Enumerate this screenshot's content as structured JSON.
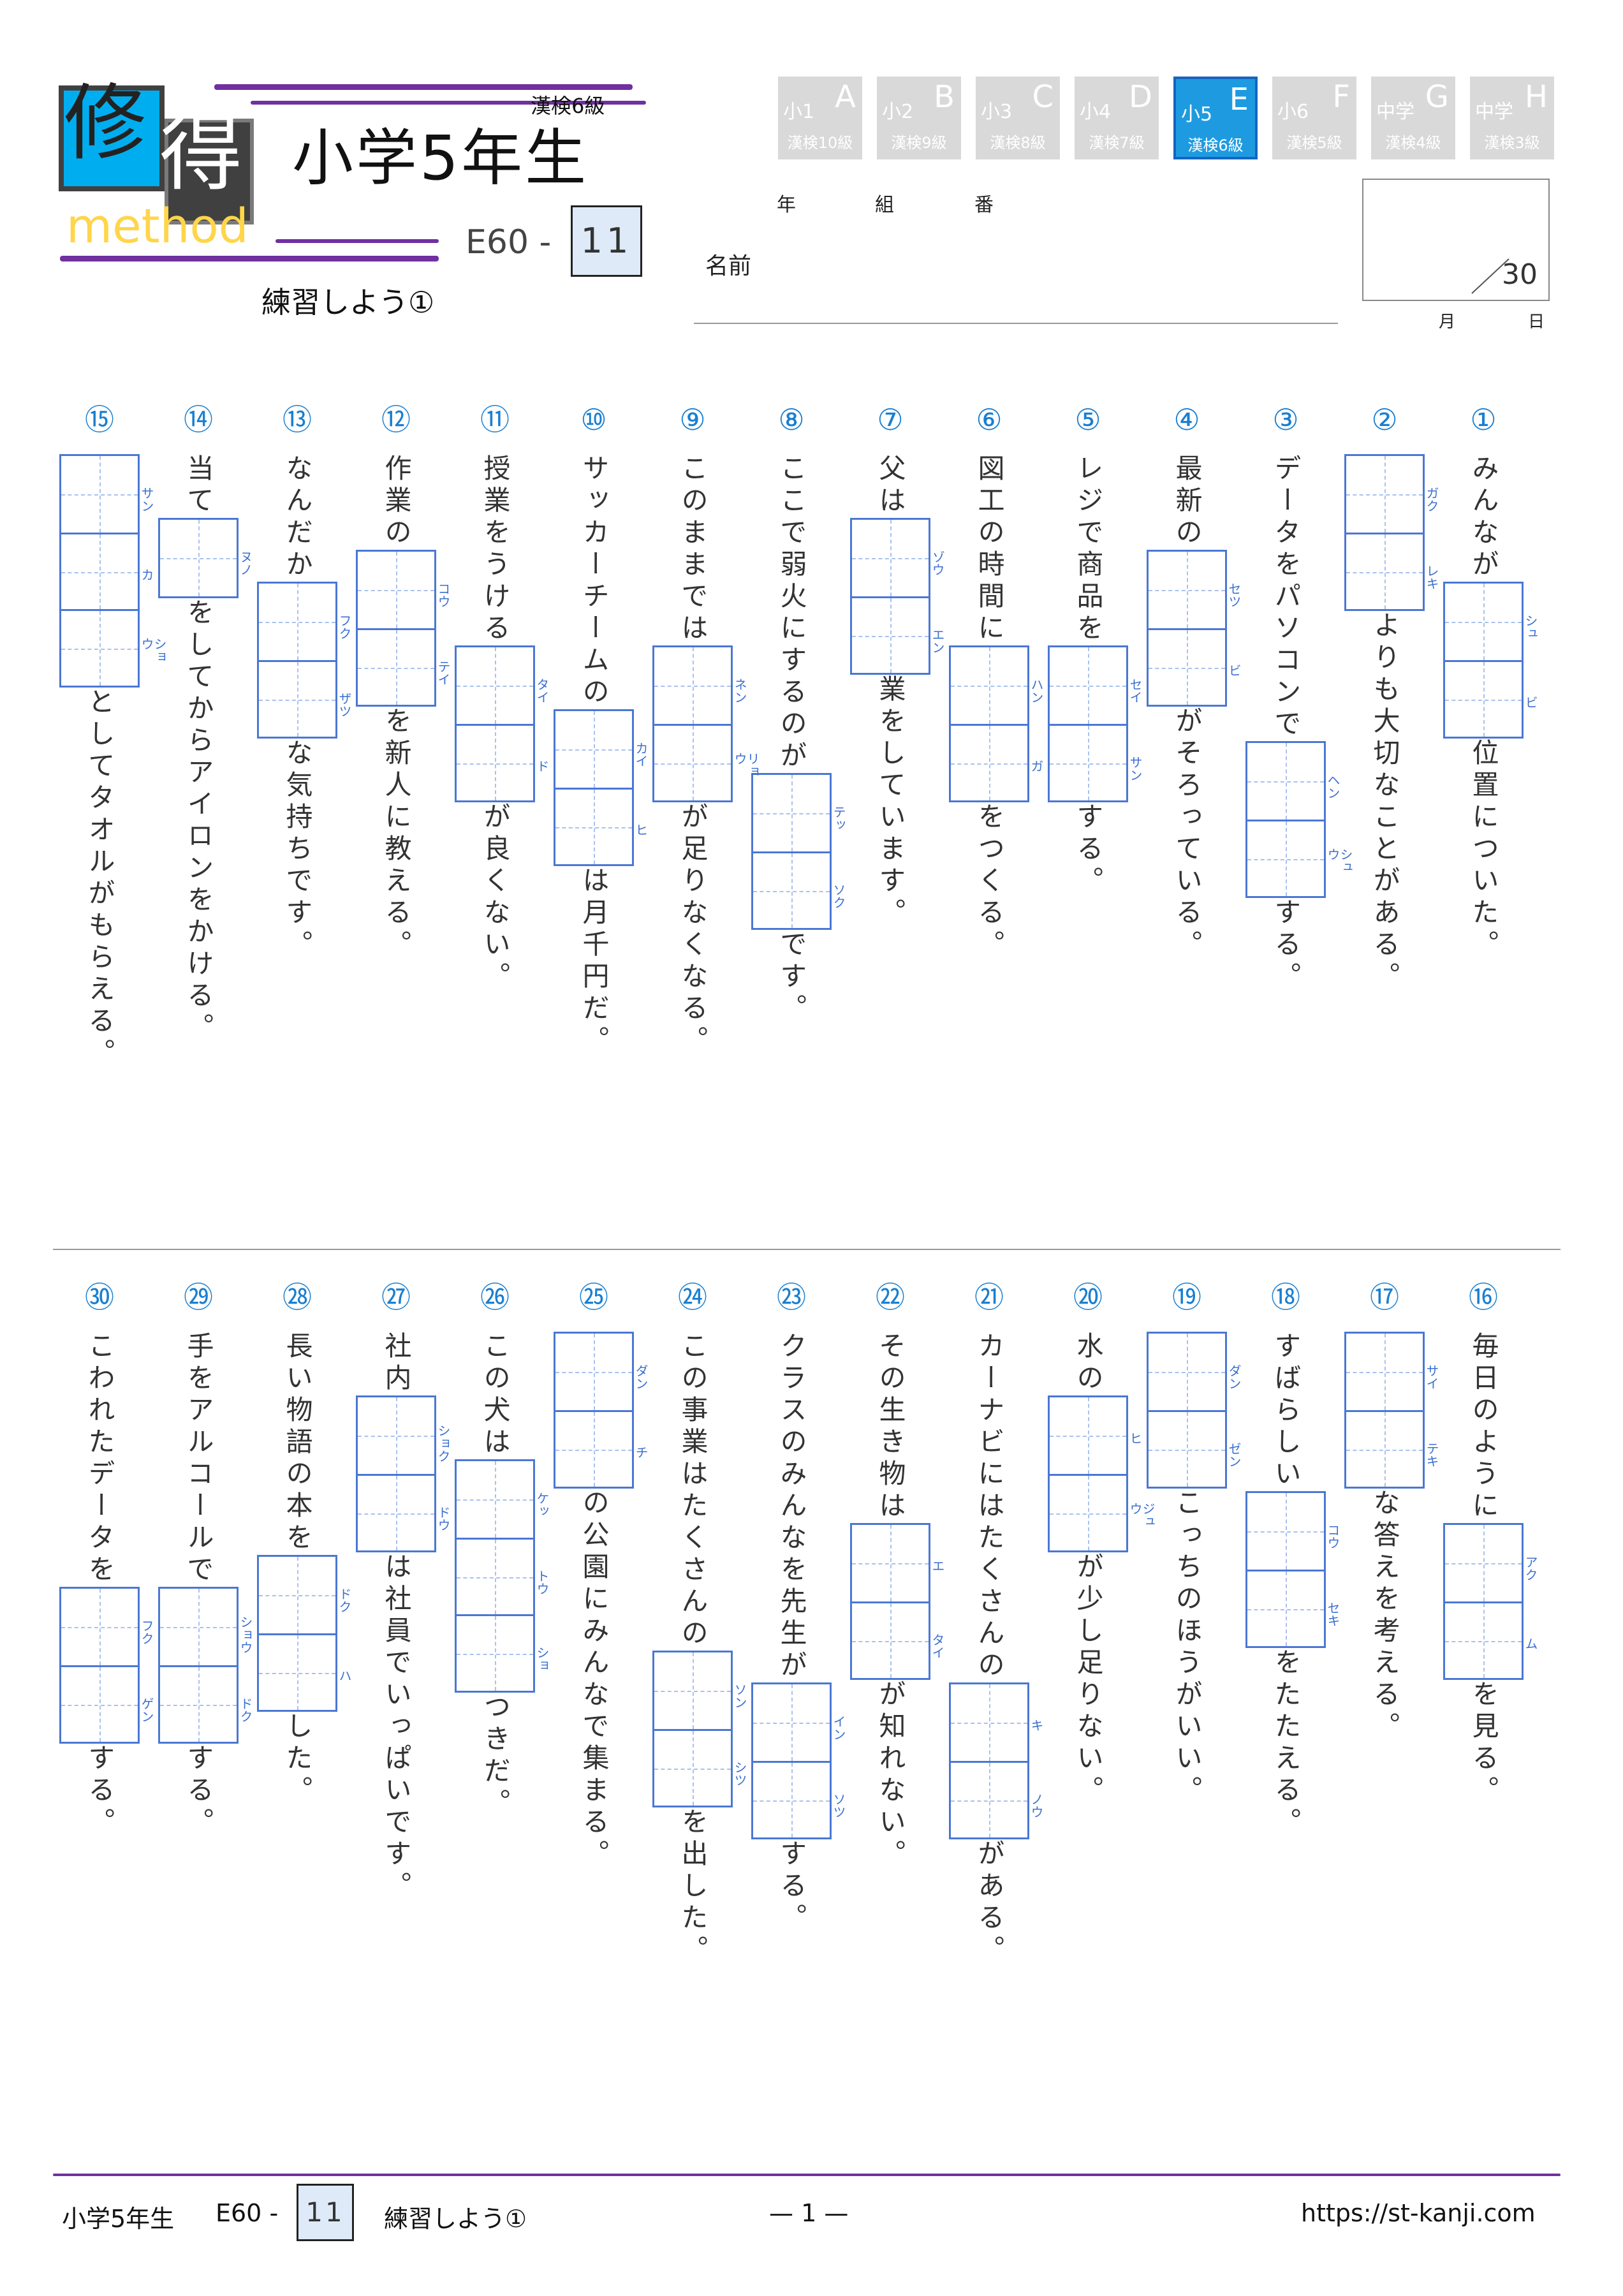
{
  "header": {
    "logo": {
      "kanji1": "修",
      "kanji2": "得",
      "word": "method"
    },
    "title": "小学5年生",
    "level": "漢検6級",
    "code": "E60 -",
    "code_number": "11",
    "subtitle": "練習しよう①",
    "tabs": [
      {
        "grade": "小1",
        "letter": "A",
        "level": "漢検10級",
        "active": false
      },
      {
        "grade": "小2",
        "letter": "B",
        "level": "漢検9級",
        "active": false
      },
      {
        "grade": "小3",
        "letter": "C",
        "level": "漢検8級",
        "active": false
      },
      {
        "grade": "小4",
        "letter": "D",
        "level": "漢検7級",
        "active": false
      },
      {
        "grade": "小5",
        "letter": "E",
        "level": "漢検6級",
        "active": true
      },
      {
        "grade": "小6",
        "letter": "F",
        "level": "漢検5級",
        "active": false
      },
      {
        "grade": "中学",
        "letter": "G",
        "level": "漢検4級",
        "active": false
      },
      {
        "grade": "中学",
        "letter": "H",
        "level": "漢検3級",
        "active": false
      }
    ],
    "fields": {
      "year": "年",
      "class": "組",
      "number": "番",
      "name": "名前",
      "month": "月",
      "day": "日"
    },
    "score_total": "30"
  },
  "colors": {
    "accent_purple": "#7030a0",
    "box_blue": "#4a77d4",
    "tab_active": "#1e9be0",
    "number_blue": "#1a7fd0"
  },
  "questions": [
    {
      "num": "①",
      "parts": [
        {
          "t": "みんなが"
        },
        {
          "box": [
            "シュ",
            "ビ"
          ]
        },
        {
          "t": "位置についた。"
        }
      ]
    },
    {
      "num": "②",
      "parts": [
        {
          "box": [
            "ガク",
            "レキ"
          ]
        },
        {
          "t": "よりも大切なことがある。"
        }
      ]
    },
    {
      "num": "③",
      "parts": [
        {
          "t": "データをパソコンで"
        },
        {
          "box": [
            "ヘン",
            "シュウ"
          ]
        },
        {
          "t": "する。"
        }
      ]
    },
    {
      "num": "④",
      "parts": [
        {
          "t": "最新の"
        },
        {
          "box": [
            "セツ",
            "ビ"
          ]
        },
        {
          "t": "がそろっている。"
        }
      ]
    },
    {
      "num": "⑤",
      "parts": [
        {
          "t": "レジで商品を"
        },
        {
          "box": [
            "セイ",
            "サン"
          ]
        },
        {
          "t": "する。"
        }
      ]
    },
    {
      "num": "⑥",
      "parts": [
        {
          "t": "図工の時間に"
        },
        {
          "box": [
            "ハン",
            "ガ"
          ]
        },
        {
          "t": "をつくる。"
        }
      ]
    },
    {
      "num": "⑦",
      "parts": [
        {
          "t": "父は"
        },
        {
          "box": [
            "ゾウ",
            "エン"
          ]
        },
        {
          "t": "業をしています。"
        }
      ]
    },
    {
      "num": "⑧",
      "parts": [
        {
          "t": "ここで弱火にするのが"
        },
        {
          "box": [
            "テッ",
            "ソク"
          ]
        },
        {
          "t": "です。"
        }
      ]
    },
    {
      "num": "⑨",
      "parts": [
        {
          "t": "このままでは"
        },
        {
          "box": [
            "ネン",
            "リョウ"
          ]
        },
        {
          "t": "が足りなくなる。"
        }
      ]
    },
    {
      "num": "⑩",
      "parts": [
        {
          "t": "サッカーチームの"
        },
        {
          "box": [
            "カイ",
            "ヒ"
          ]
        },
        {
          "t": "は月千円だ。"
        }
      ]
    },
    {
      "num": "⑪",
      "parts": [
        {
          "t": "授業をうける"
        },
        {
          "box": [
            "タイ",
            "ド"
          ]
        },
        {
          "t": "が良くない。"
        }
      ]
    },
    {
      "num": "⑫",
      "parts": [
        {
          "t": "作業の"
        },
        {
          "box": [
            "コウ",
            "テイ"
          ]
        },
        {
          "t": "を新人に教える。"
        }
      ]
    },
    {
      "num": "⑬",
      "parts": [
        {
          "t": "なんだか"
        },
        {
          "box": [
            "フク",
            "ザツ"
          ]
        },
        {
          "t": "な気持ちです。"
        }
      ]
    },
    {
      "num": "⑭",
      "parts": [
        {
          "t": "当て"
        },
        {
          "box": [
            "ヌノ"
          ]
        },
        {
          "t": "をしてからアイロンをかける。"
        }
      ]
    },
    {
      "num": "⑮",
      "parts": [
        {
          "box": [
            "サン",
            "カ",
            "ショウ"
          ]
        },
        {
          "t": "としてタオルがもらえる。"
        }
      ]
    },
    {
      "num": "⑯",
      "parts": [
        {
          "t": "毎日のように"
        },
        {
          "box": [
            "アク",
            "ム"
          ]
        },
        {
          "t": "を見る。"
        }
      ]
    },
    {
      "num": "⑰",
      "parts": [
        {
          "box": [
            "サイ",
            "テキ"
          ]
        },
        {
          "t": "な答えを考える。"
        }
      ]
    },
    {
      "num": "⑱",
      "parts": [
        {
          "t": "すばらしい"
        },
        {
          "box": [
            "コウ",
            "セキ"
          ]
        },
        {
          "t": "をたたえる。"
        }
      ]
    },
    {
      "num": "⑲",
      "parts": [
        {
          "box": [
            "ダン",
            "ゼン"
          ]
        },
        {
          "t": "こっちのほうがいい。"
        }
      ]
    },
    {
      "num": "⑳",
      "parts": [
        {
          "t": "水の"
        },
        {
          "box": [
            "ヒ",
            "ジュウ"
          ]
        },
        {
          "t": "が少し足りない。"
        }
      ]
    },
    {
      "num": "㉑",
      "parts": [
        {
          "t": "カーナビにはたくさんの"
        },
        {
          "box": [
            "キ",
            "ノウ"
          ]
        },
        {
          "t": "がある。"
        }
      ]
    },
    {
      "num": "㉒",
      "parts": [
        {
          "t": "その生き物は"
        },
        {
          "box": [
            "エ",
            "タイ"
          ]
        },
        {
          "t": "が知れない。"
        }
      ]
    },
    {
      "num": "㉓",
      "parts": [
        {
          "t": "クラスのみんなを先生が"
        },
        {
          "box": [
            "イン",
            "ソツ"
          ]
        },
        {
          "t": "する。"
        }
      ]
    },
    {
      "num": "㉔",
      "parts": [
        {
          "t": "この事業はたくさんの"
        },
        {
          "box": [
            "ソン",
            "シツ"
          ]
        },
        {
          "t": "を出した。"
        }
      ]
    },
    {
      "num": "㉕",
      "parts": [
        {
          "box": [
            "ダン",
            "チ"
          ]
        },
        {
          "t": "の公園にみんなで集まる。"
        }
      ]
    },
    {
      "num": "㉖",
      "parts": [
        {
          "t": "この犬は"
        },
        {
          "box": [
            "ケッ",
            "トウ",
            "ショ"
          ]
        },
        {
          "t": "つきだ。"
        }
      ]
    },
    {
      "num": "㉗",
      "parts": [
        {
          "t": "社内"
        },
        {
          "box": [
            "ショク",
            "ドウ"
          ]
        },
        {
          "t": "は社員でいっぱいです。"
        }
      ]
    },
    {
      "num": "㉘",
      "parts": [
        {
          "t": "長い物語の本を"
        },
        {
          "box": [
            "ドク",
            "ハ"
          ]
        },
        {
          "t": "した。"
        }
      ]
    },
    {
      "num": "㉙",
      "parts": [
        {
          "t": "手をアルコールで"
        },
        {
          "box": [
            "ショウ",
            "ドク"
          ]
        },
        {
          "t": "する。"
        }
      ]
    },
    {
      "num": "㉚",
      "parts": [
        {
          "t": "こわれたデータを"
        },
        {
          "box": [
            "フク",
            "ゲン"
          ]
        },
        {
          "t": "する。"
        }
      ]
    }
  ],
  "footer": {
    "grade": "小学5年生",
    "code": "E60 -",
    "code_number": "11",
    "subtitle": "練習しよう①",
    "page": "— 1 —",
    "url": "https://st-kanji.com"
  }
}
